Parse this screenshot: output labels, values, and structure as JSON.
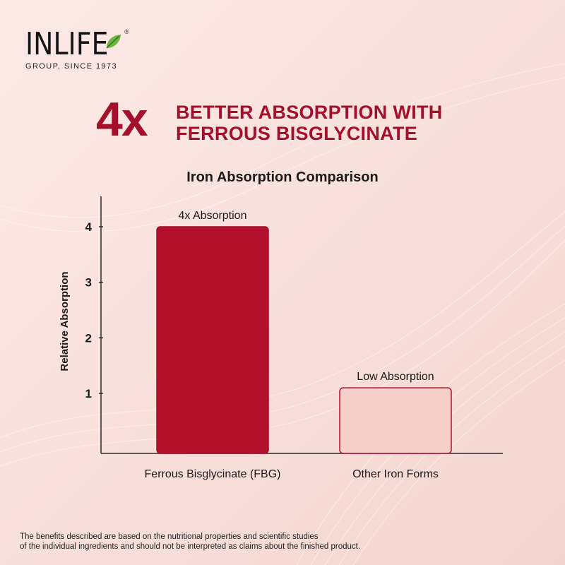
{
  "brand": {
    "name": "INLIFE",
    "registered_mark": "®",
    "tagline": "GROUP, SINCE 1973",
    "leaf_colors": [
      "#6fb43f",
      "#2e7d32"
    ]
  },
  "headline": {
    "multiplier": "4x",
    "line1": "BETTER ABSORPTION WITH",
    "line2": "FERROUS BISGLYCINATE",
    "color": "#a4102b"
  },
  "chart_data": {
    "type": "bar",
    "title": "Iron Absorption Comparison",
    "xlabel": "",
    "ylabel": "Relative Absorption",
    "categories": [
      "Ferrous Bisglycinate (FBG)",
      "Other Iron Forms"
    ],
    "values": [
      4,
      1.1
    ],
    "bar_labels": [
      "4x Absorption",
      "Low Absorption"
    ],
    "bar_colors": [
      "#b3102c",
      "#f7cfca"
    ],
    "bar_stroke": [
      "#a30e28",
      "#b3102c"
    ],
    "yticks": [
      1,
      2,
      3,
      4
    ],
    "ytick_labels": [
      "1",
      "2",
      "3",
      "4"
    ],
    "ylim": [
      0,
      4.5
    ],
    "grid": false,
    "legend": "none"
  },
  "footnote": {
    "line1": "The benefits described are based on the nutritional properties and scientific studies",
    "line2": "of the individual ingredients and should not be interpreted as claims about the finished product."
  }
}
